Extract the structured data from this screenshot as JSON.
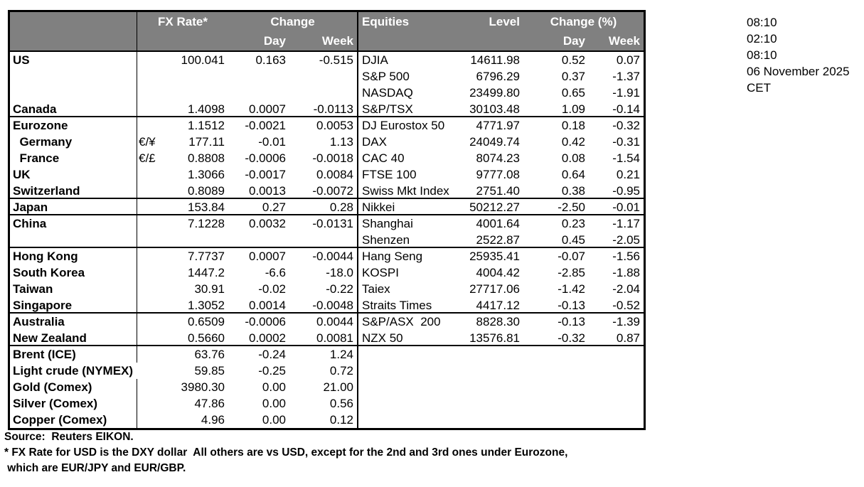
{
  "colors": {
    "header_bg": "#808080",
    "header_text": "#ffffff",
    "border": "#000000"
  },
  "table": {
    "header": {
      "fx_rate": "FX Rate*",
      "change": "Change",
      "day": "Day",
      "week": "Week",
      "equities": "Equities",
      "level": "Level",
      "change_pct": "Change (%)"
    },
    "sections": [
      {
        "rows": [
          {
            "name": "US",
            "pair": "",
            "fx": "100.041",
            "fx_day": "0.163",
            "fx_week": "-0.515",
            "eq": "DJIA",
            "eq_level": "14611.98",
            "eq_day": "0.52",
            "eq_week": "0.07"
          },
          {
            "name": "",
            "pair": "",
            "fx": "",
            "fx_day": "",
            "fx_week": "",
            "eq": "S&P 500",
            "eq_level": "6796.29",
            "eq_day": "0.37",
            "eq_week": "-1.37"
          },
          {
            "name": "",
            "pair": "",
            "fx": "",
            "fx_day": "",
            "fx_week": "",
            "eq": "NASDAQ",
            "eq_level": "23499.80",
            "eq_day": "0.65",
            "eq_week": "-1.91"
          },
          {
            "name": "Canada",
            "pair": "",
            "fx": "1.4098",
            "fx_day": "0.0007",
            "fx_week": "-0.0113",
            "eq": "S&P/TSX",
            "eq_level": "30103.48",
            "eq_day": "1.09",
            "eq_week": "-0.14"
          }
        ]
      },
      {
        "rows": [
          {
            "name": "Eurozone",
            "pair": "",
            "fx": "1.1512",
            "fx_day": "-0.0021",
            "fx_week": "0.0053",
            "eq": "DJ Eurostox 50",
            "eq_level": "4771.97",
            "eq_day": "0.18",
            "eq_week": "-0.32"
          },
          {
            "name": "  Germany",
            "pair": "€/¥",
            "fx": "177.11",
            "fx_day": "-0.01",
            "fx_week": "1.13",
            "eq": "DAX",
            "eq_level": "24049.74",
            "eq_day": "0.42",
            "eq_week": "-0.31"
          },
          {
            "name": "  France",
            "pair": "€/£",
            "fx": "0.8808",
            "fx_day": "-0.0006",
            "fx_week": "-0.0018",
            "eq": "CAC 40",
            "eq_level": "8074.23",
            "eq_day": "0.08",
            "eq_week": "-1.54"
          },
          {
            "name": "UK",
            "pair": "",
            "fx": "1.3066",
            "fx_day": "-0.0017",
            "fx_week": "0.0084",
            "eq": "FTSE 100",
            "eq_level": "9777.08",
            "eq_day": "0.64",
            "eq_week": "0.21"
          },
          {
            "name": "Switzerland",
            "pair": "",
            "fx": "0.8089",
            "fx_day": "0.0013",
            "fx_week": "-0.0072",
            "eq": "Swiss Mkt Index",
            "eq_level": "2751.40",
            "eq_day": "0.38",
            "eq_week": "-0.95"
          }
        ]
      },
      {
        "rows": [
          {
            "name": "Japan",
            "pair": "",
            "fx": "153.84",
            "fx_day": "0.27",
            "fx_week": "0.28",
            "eq": "Nikkei",
            "eq_level": "50212.27",
            "eq_day": "-2.50",
            "eq_week": "-0.01"
          }
        ]
      },
      {
        "rows": [
          {
            "name": "China",
            "pair": "",
            "fx": "7.1228",
            "fx_day": "0.0032",
            "fx_week": "-0.0131",
            "eq": "Shanghai",
            "eq_level": "4001.64",
            "eq_day": "0.23",
            "eq_week": "-1.17"
          },
          {
            "name": "",
            "pair": "",
            "fx": "",
            "fx_day": "",
            "fx_week": "",
            "eq": "Shenzen",
            "eq_level": "2522.87",
            "eq_day": "0.45",
            "eq_week": "-2.05"
          }
        ]
      },
      {
        "rows": [
          {
            "name": "Hong Kong",
            "pair": "",
            "fx": "7.7737",
            "fx_day": "0.0007",
            "fx_week": "-0.0044",
            "eq": "Hang Seng",
            "eq_level": "25935.41",
            "eq_day": "-0.07",
            "eq_week": "-1.56"
          },
          {
            "name": "South Korea",
            "pair": "",
            "fx": "1447.2",
            "fx_day": "-6.6",
            "fx_week": "-18.0",
            "eq": "KOSPI",
            "eq_level": "4004.42",
            "eq_day": "-2.85",
            "eq_week": "-1.88"
          },
          {
            "name": "Taiwan",
            "pair": "",
            "fx": "30.91",
            "fx_day": "-0.02",
            "fx_week": "-0.22",
            "eq": "Taiex",
            "eq_level": "27717.06",
            "eq_day": "-1.42",
            "eq_week": "-2.04"
          },
          {
            "name": "Singapore",
            "pair": "",
            "fx": "1.3052",
            "fx_day": "0.0014",
            "fx_week": "-0.0048",
            "eq": "Straits Times",
            "eq_level": "4417.12",
            "eq_day": "-0.13",
            "eq_week": "-0.52"
          }
        ]
      },
      {
        "rows": [
          {
            "name": "Australia",
            "pair": "",
            "fx": "0.6509",
            "fx_day": "-0.0006",
            "fx_week": "0.0044",
            "eq": "S&P/ASX  200",
            "eq_level": "8828.30",
            "eq_day": "-0.13",
            "eq_week": "-1.39"
          },
          {
            "name": "New Zealand",
            "pair": "",
            "fx": "0.5660",
            "fx_day": "0.0002",
            "fx_week": "0.0081",
            "eq": "NZX 50",
            "eq_level": "13576.81",
            "eq_day": "-0.32",
            "eq_week": "0.87"
          }
        ]
      },
      {
        "rows": [
          {
            "name": "Brent (ICE)",
            "pair": "",
            "fx": "63.76",
            "fx_day": "-0.24",
            "fx_week": "1.24",
            "eq": "",
            "eq_level": "",
            "eq_day": "",
            "eq_week": ""
          },
          {
            "name": "Light crude (NYMEX)",
            "pair": "",
            "fx": "59.85",
            "fx_day": "-0.25",
            "fx_week": "0.72",
            "eq": "",
            "eq_level": "",
            "eq_day": "",
            "eq_week": "",
            "name_spans_pair_column": true
          },
          {
            "name": "Gold (Comex)",
            "pair": "",
            "fx": "3980.30",
            "fx_day": "0.00",
            "fx_week": "21.00",
            "eq": "",
            "eq_level": "",
            "eq_day": "",
            "eq_week": ""
          },
          {
            "name": "Silver (Comex)",
            "pair": "",
            "fx": "47.86",
            "fx_day": "0.00",
            "fx_week": "0.56",
            "eq": "",
            "eq_level": "",
            "eq_day": "",
            "eq_week": ""
          },
          {
            "name": "Copper (Comex)",
            "pair": "",
            "fx": "4.96",
            "fx_day": "0.00",
            "fx_week": "0.12",
            "eq": "",
            "eq_level": "",
            "eq_day": "",
            "eq_week": ""
          }
        ]
      }
    ]
  },
  "timestamps": {
    "lines": [
      "08:10",
      "02:10",
      "08:10",
      "06 November 2025",
      "CET"
    ]
  },
  "footnotes": {
    "lines": [
      "Source:  Reuters EIKON.",
      "* FX Rate for USD is the DXY dollar  All others are vs USD, except for the 2nd and 3rd ones under Eurozone,",
      " which are EUR/JPY and EUR/GBP."
    ]
  }
}
